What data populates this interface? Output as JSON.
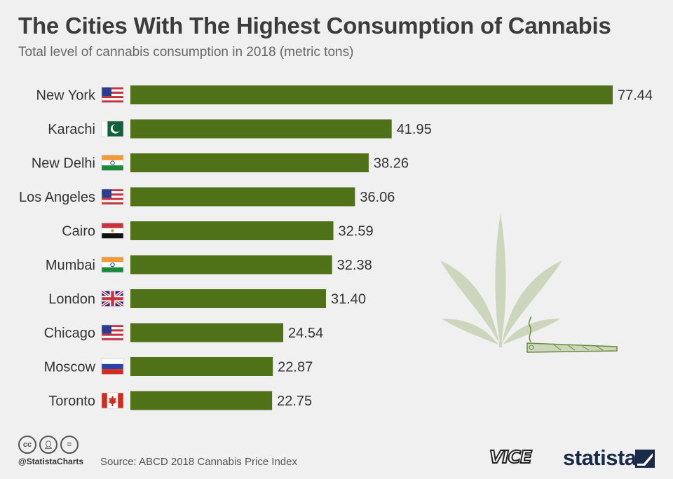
{
  "header": {
    "title": "The Cities With The Highest Consumption of Cannabis",
    "subtitle": "Total level of cannabis consumption in 2018 (metric tons)"
  },
  "chart_data": {
    "type": "bar",
    "orientation": "horizontal",
    "categories": [
      "New York",
      "Karachi",
      "New Delhi",
      "Los Angeles",
      "Cairo",
      "Mumbai",
      "London",
      "Chicago",
      "Moscow",
      "Toronto"
    ],
    "flags": [
      "us",
      "pk",
      "in",
      "us",
      "eg",
      "in",
      "gb",
      "us",
      "ru",
      "ca"
    ],
    "values": [
      77.44,
      41.95,
      38.26,
      36.06,
      32.59,
      32.38,
      31.4,
      24.54,
      22.87,
      22.75
    ],
    "value_labels": [
      "77.44",
      "41.95",
      "38.26",
      "36.06",
      "32.59",
      "32.38",
      "31.40",
      "24.54",
      "22.87",
      "22.75"
    ],
    "xlim": [
      0,
      77.44
    ],
    "bar_color": "#4f7117",
    "grid": false,
    "legend": "none"
  },
  "footer": {
    "handle": "@StatistaCharts",
    "source": "Source: ABCD 2018 Cannabis Price Index",
    "brand_partner": "VICE",
    "brand": "statista"
  },
  "icons": {
    "license": [
      "cc-icon",
      "attribution-icon",
      "no-derivatives-icon"
    ],
    "illustration": "cannabis-leaf-icon"
  }
}
